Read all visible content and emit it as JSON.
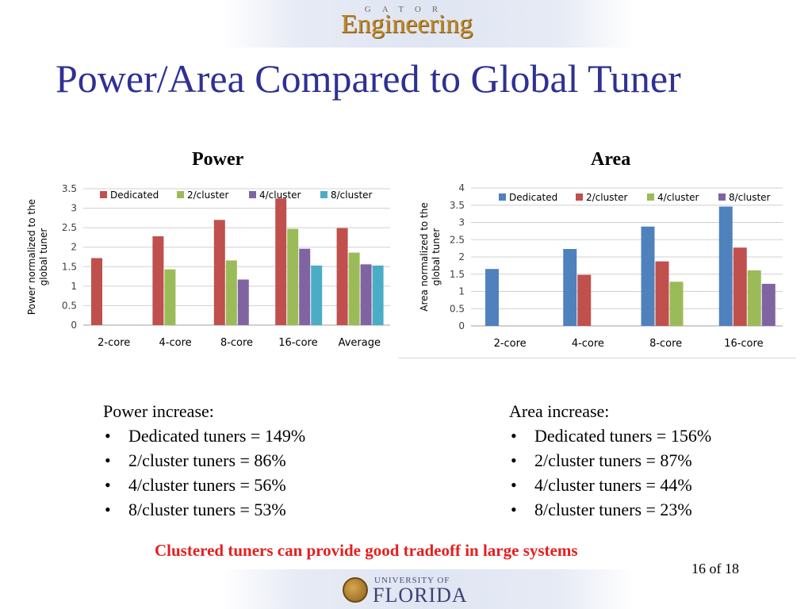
{
  "header": {
    "logo_small": "GATOR",
    "logo_main": "Engineering"
  },
  "title": "Power/Area Compared to Global Tuner",
  "panels": {
    "power_heading": "Power",
    "area_heading": "Area"
  },
  "chart_data": [
    {
      "type": "bar",
      "title": "",
      "ylabel": "Power normalized to the global tuner",
      "xlabel": "",
      "ylim": [
        0,
        3.5
      ],
      "yticks": [
        "0",
        "0.5",
        "1",
        "1.5",
        "2",
        "2.5",
        "3",
        "3.5"
      ],
      "yticks_values": [
        0,
        0.5,
        1,
        1.5,
        2,
        2.5,
        3,
        3.5
      ],
      "categories": [
        "2-core",
        "4-core",
        "8-core",
        "16-core",
        "Average"
      ],
      "legend_position": "top",
      "grid": true,
      "series": [
        {
          "name": "Dedicated",
          "color": "#c0504d",
          "values": [
            1.72,
            2.28,
            2.7,
            3.25,
            2.49
          ]
        },
        {
          "name": "2/cluster",
          "color": "#9bbb59",
          "values": [
            null,
            1.43,
            1.66,
            2.47,
            1.86
          ]
        },
        {
          "name": "4/cluster",
          "color": "#8064a2",
          "values": [
            null,
            null,
            1.17,
            1.96,
            1.56
          ]
        },
        {
          "name": "8/cluster",
          "color": "#4bacc6",
          "values": [
            null,
            null,
            null,
            1.53,
            1.53
          ]
        }
      ]
    },
    {
      "type": "bar",
      "title": "",
      "ylabel": "Area normalized to the global tuner",
      "xlabel": "",
      "ylim": [
        0,
        4
      ],
      "yticks": [
        "0",
        "0.5",
        "1",
        "1.5",
        "2",
        "2.5",
        "3",
        "3.5",
        "4"
      ],
      "yticks_values": [
        0,
        0.5,
        1,
        1.5,
        2,
        2.5,
        3,
        3.5,
        4
      ],
      "categories": [
        "2-core",
        "4-core",
        "8-core",
        "16-core"
      ],
      "legend_position": "top",
      "grid": true,
      "series": [
        {
          "name": "Dedicated",
          "color": "#4f81bd",
          "values": [
            1.65,
            2.23,
            2.88,
            3.46
          ]
        },
        {
          "name": "2/cluster",
          "color": "#c0504d",
          "values": [
            null,
            1.48,
            1.87,
            2.27
          ]
        },
        {
          "name": "4/cluster",
          "color": "#9bbb59",
          "values": [
            null,
            null,
            1.28,
            1.61
          ]
        },
        {
          "name": "8/cluster",
          "color": "#8064a2",
          "values": [
            null,
            null,
            null,
            1.22
          ]
        }
      ]
    }
  ],
  "power_stats": {
    "heading": "Power increase:",
    "items": [
      "Dedicated tuners = 149%",
      "2/cluster tuners = 86%",
      "4/cluster tuners = 56%",
      "8/cluster tuners = 53%"
    ]
  },
  "area_stats": {
    "heading": "Area increase:",
    "items": [
      "Dedicated tuners = 156%",
      "2/cluster tuners = 87%",
      "4/cluster tuners = 44%",
      "8/cluster tuners = 23%"
    ]
  },
  "conclusion": "Clustered tuners can provide good tradeoff in large systems",
  "page_number": "16 of 18",
  "footer": {
    "univ": "UNIVERSITY OF",
    "name": "FLORIDA"
  }
}
